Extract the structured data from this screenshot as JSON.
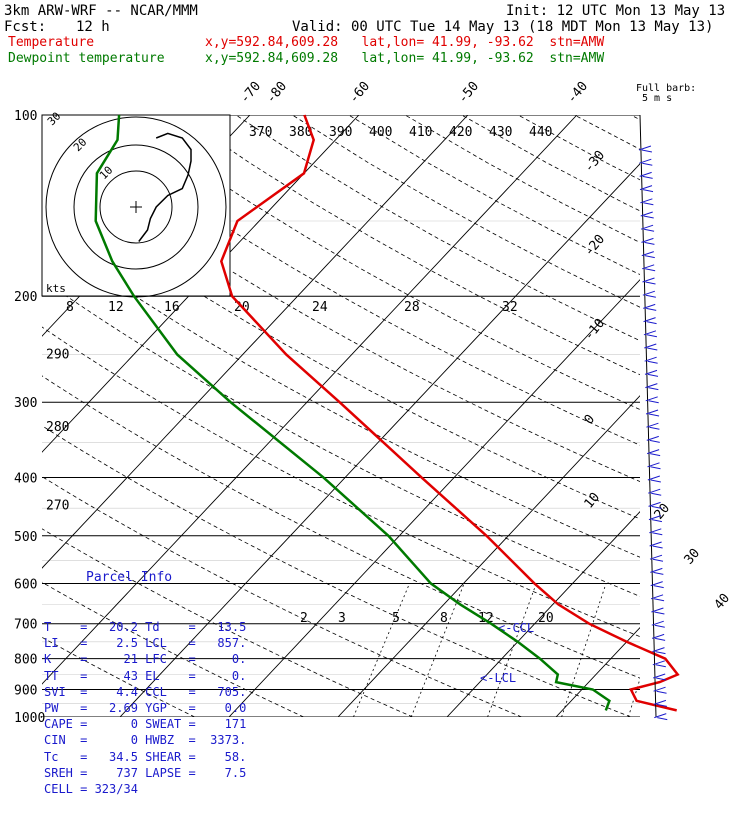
{
  "header": {
    "model": "3km ARW-WRF -- NCAR/MMM",
    "init": "Init: 12 UTC Mon 13 May 13",
    "fcst_label": "Fcst:",
    "fcst_value": "12 h",
    "valid": "Valid: 00 UTC Tue 14 May 13 (18 MDT Mon 13 May 13)",
    "temp_label": "Temperature",
    "temp_loc": "x,y=592.84,609.28   lat,lon= 41.99, -93.62  stn=AMW",
    "dew_label": "Dewpoint temperature",
    "dew_loc": "x,y=592.84,609.28   lat,lon= 41.99, -93.62  stn=AMW"
  },
  "wind_label": {
    "line1": "Full barb:",
    "line2": "5 m s"
  },
  "hodograph": {
    "units": "kts",
    "ring_labels": [
      "10",
      "20",
      "30"
    ],
    "speed_ticks": [
      "8",
      "12",
      "16",
      "20",
      "24",
      "28",
      "32"
    ],
    "path": [
      [
        2,
        -15
      ],
      [
        5,
        -10
      ],
      [
        6,
        -5
      ],
      [
        8,
        0
      ],
      [
        12,
        5
      ],
      [
        17,
        8
      ],
      [
        19,
        14
      ],
      [
        20,
        20
      ],
      [
        20,
        25
      ],
      [
        17,
        30
      ],
      [
        12,
        32
      ],
      [
        8,
        30
      ]
    ]
  },
  "theta_labels": [
    "370",
    "380",
    "390",
    "400",
    "410",
    "420",
    "430",
    "440"
  ],
  "theta_left_labels": [
    {
      "text": "290",
      "p": 250
    },
    {
      "text": "280",
      "p": 330
    },
    {
      "text": "270",
      "p": 445
    }
  ],
  "mixing_ratio_labels": [
    "2",
    "3",
    "5",
    "8",
    "12",
    "20"
  ],
  "lcl_labels": [
    "<-CCL",
    "<-LCL"
  ],
  "parcel": {
    "title": "Parcel Info",
    "rows": [
      [
        "T",
        "=",
        "20.2",
        "Td",
        "=",
        "13.5"
      ],
      [
        "LI",
        "=",
        "2.5",
        "LCL",
        "=",
        "857."
      ],
      [
        "K",
        "=",
        "21",
        "LFC",
        "=",
        "0."
      ],
      [
        "TT",
        "=",
        "43",
        "EL",
        "=",
        "0."
      ],
      [
        "SVI",
        "=",
        "4.4",
        "CCL",
        "=",
        "705."
      ],
      [
        "PW",
        "=",
        "2.69",
        "YGP",
        "=",
        "0.0"
      ],
      [
        "CAPE",
        "=",
        "0",
        "SWEAT",
        "=",
        "171"
      ],
      [
        "CIN",
        "=",
        "0",
        "HWBZ",
        "=",
        "3373."
      ],
      [
        "Tc",
        "=",
        "34.5",
        "SHEAR",
        "=",
        "58."
      ],
      [
        "SREH",
        "=",
        "737",
        "LAPSE",
        "=",
        "7.5"
      ],
      [
        "CELL",
        "=",
        "323/34",
        "",
        "",
        ""
      ]
    ]
  },
  "chart_data": {
    "type": "line",
    "title": "",
    "xlabel": "",
    "ylabel": "",
    "pressure_levels_hPa": [
      100,
      200,
      300,
      400,
      500,
      600,
      700,
      800,
      900,
      1000
    ],
    "temperature_ticks_C": [
      -80,
      -70,
      -60,
      -50,
      -40,
      -30,
      -20,
      -10,
      0,
      10,
      20,
      30,
      40
    ],
    "series": [
      {
        "name": "Temperature",
        "color": "#e00000",
        "points": [
          {
            "p": 975,
            "t": 20.5
          },
          {
            "p": 940,
            "t": 16.0
          },
          {
            "p": 900,
            "t": 14.5
          },
          {
            "p": 875,
            "t": 16.5
          },
          {
            "p": 850,
            "t": 17.5
          },
          {
            "p": 800,
            "t": 15.0
          },
          {
            "p": 750,
            "t": 10.0
          },
          {
            "p": 700,
            "t": 5.0
          },
          {
            "p": 650,
            "t": 0.5
          },
          {
            "p": 600,
            "t": -3.5
          },
          {
            "p": 500,
            "t": -12.0
          },
          {
            "p": 400,
            "t": -23.0
          },
          {
            "p": 300,
            "t": -37.0
          },
          {
            "p": 250,
            "t": -46.0
          },
          {
            "p": 200,
            "t": -56.0
          },
          {
            "p": 175,
            "t": -60.0
          },
          {
            "p": 150,
            "t": -62.0
          },
          {
            "p": 125,
            "t": -60.0
          },
          {
            "p": 110,
            "t": -62.0
          },
          {
            "p": 100,
            "t": -65.0
          }
        ]
      },
      {
        "name": "Dewpoint temperature",
        "color": "#007a00",
        "points": [
          {
            "p": 975,
            "t": 14.0
          },
          {
            "p": 940,
            "t": 13.5
          },
          {
            "p": 900,
            "t": 11.0
          },
          {
            "p": 875,
            "t": 7.0
          },
          {
            "p": 850,
            "t": 6.5
          },
          {
            "p": 800,
            "t": 3.5
          },
          {
            "p": 750,
            "t": 0.0
          },
          {
            "p": 700,
            "t": -4.0
          },
          {
            "p": 650,
            "t": -8.5
          },
          {
            "p": 600,
            "t": -13.0
          },
          {
            "p": 500,
            "t": -21.0
          },
          {
            "p": 400,
            "t": -32.0
          },
          {
            "p": 300,
            "t": -47.0
          },
          {
            "p": 250,
            "t": -56.0
          },
          {
            "p": 200,
            "t": -65.0
          },
          {
            "p": 175,
            "t": -70.0
          },
          {
            "p": 150,
            "t": -75.0
          },
          {
            "p": 125,
            "t": -79.0
          },
          {
            "p": 110,
            "t": -80.0
          },
          {
            "p": 100,
            "t": -82.0
          }
        ]
      }
    ],
    "grid": true,
    "legend_position": "top-left"
  }
}
